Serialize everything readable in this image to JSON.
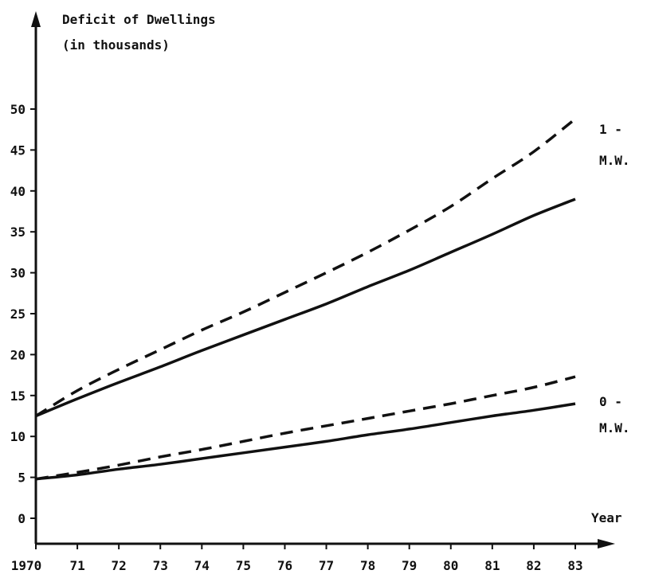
{
  "chart_data": {
    "type": "line",
    "title": "",
    "ylabel_lines": [
      "Deficit of Dwellings",
      "(in thousands)"
    ],
    "xlabel": "Year",
    "x": [
      1970,
      1971,
      1972,
      1973,
      1974,
      1975,
      1976,
      1977,
      1978,
      1979,
      1980,
      1981,
      1982,
      1983
    ],
    "x_tick_labels": [
      "1970",
      "71",
      "72",
      "73",
      "74",
      "75",
      "76",
      "77",
      "78",
      "79",
      "80",
      "81",
      "82",
      "83"
    ],
    "y_ticks": [
      0,
      5,
      10,
      15,
      20,
      25,
      30,
      35,
      40,
      45,
      50
    ],
    "y_tick_labels": [
      "0",
      "5",
      "10",
      "15",
      "20",
      "25",
      "30",
      "35",
      "40",
      "45",
      "50"
    ],
    "ylim": [
      0,
      55
    ],
    "xlim": [
      1970,
      1983.5
    ],
    "grid": false,
    "series": [
      {
        "group": "1-",
        "style": "dashed",
        "x": [
          1970,
          1971,
          1972,
          1973,
          1974,
          1975,
          1976,
          1977,
          1978,
          1979,
          1980,
          1981,
          1982,
          1983
        ],
        "values": [
          12.5,
          15.6,
          18.2,
          20.6,
          23.0,
          25.2,
          27.6,
          30.0,
          32.5,
          35.2,
          38.1,
          41.5,
          44.8,
          48.8
        ]
      },
      {
        "group": "1-",
        "style": "solid",
        "x": [
          1970,
          1971,
          1972,
          1973,
          1974,
          1975,
          1976,
          1977,
          1978,
          1979,
          1980,
          1981,
          1982,
          1983
        ],
        "values": [
          12.5,
          14.6,
          16.6,
          18.5,
          20.5,
          22.4,
          24.3,
          26.2,
          28.3,
          30.3,
          32.5,
          34.7,
          37.0,
          39.0
        ]
      },
      {
        "group": "0-",
        "style": "dashed",
        "x": [
          1970,
          1971,
          1972,
          1973,
          1974,
          1975,
          1976,
          1977,
          1978,
          1979,
          1980,
          1981,
          1982,
          1983
        ],
        "values": [
          4.8,
          5.6,
          6.5,
          7.5,
          8.4,
          9.4,
          10.4,
          11.3,
          12.2,
          13.1,
          14.0,
          15.0,
          16.0,
          17.3
        ]
      },
      {
        "group": "0-",
        "style": "solid",
        "x": [
          1970,
          1971,
          1972,
          1973,
          1974,
          1975,
          1976,
          1977,
          1978,
          1979,
          1980,
          1981,
          1982,
          1983
        ],
        "values": [
          4.8,
          5.3,
          6.0,
          6.6,
          7.3,
          8.0,
          8.7,
          9.4,
          10.2,
          10.9,
          11.7,
          12.5,
          13.2,
          14.0
        ]
      }
    ],
    "annotations": [
      {
        "id": "upper-group-label",
        "text": "1 - ",
        "near_series": "1-"
      },
      {
        "id": "upper-group-unit",
        "text": "M.W.",
        "near_series": "1-"
      },
      {
        "id": "lower-group-label",
        "text": "0 - ",
        "near_series": "0-"
      },
      {
        "id": "lower-group-unit",
        "text": "M.W.",
        "near_series": "0-"
      }
    ],
    "colors": {
      "background": "#ffffff",
      "ink": "#111111"
    }
  }
}
